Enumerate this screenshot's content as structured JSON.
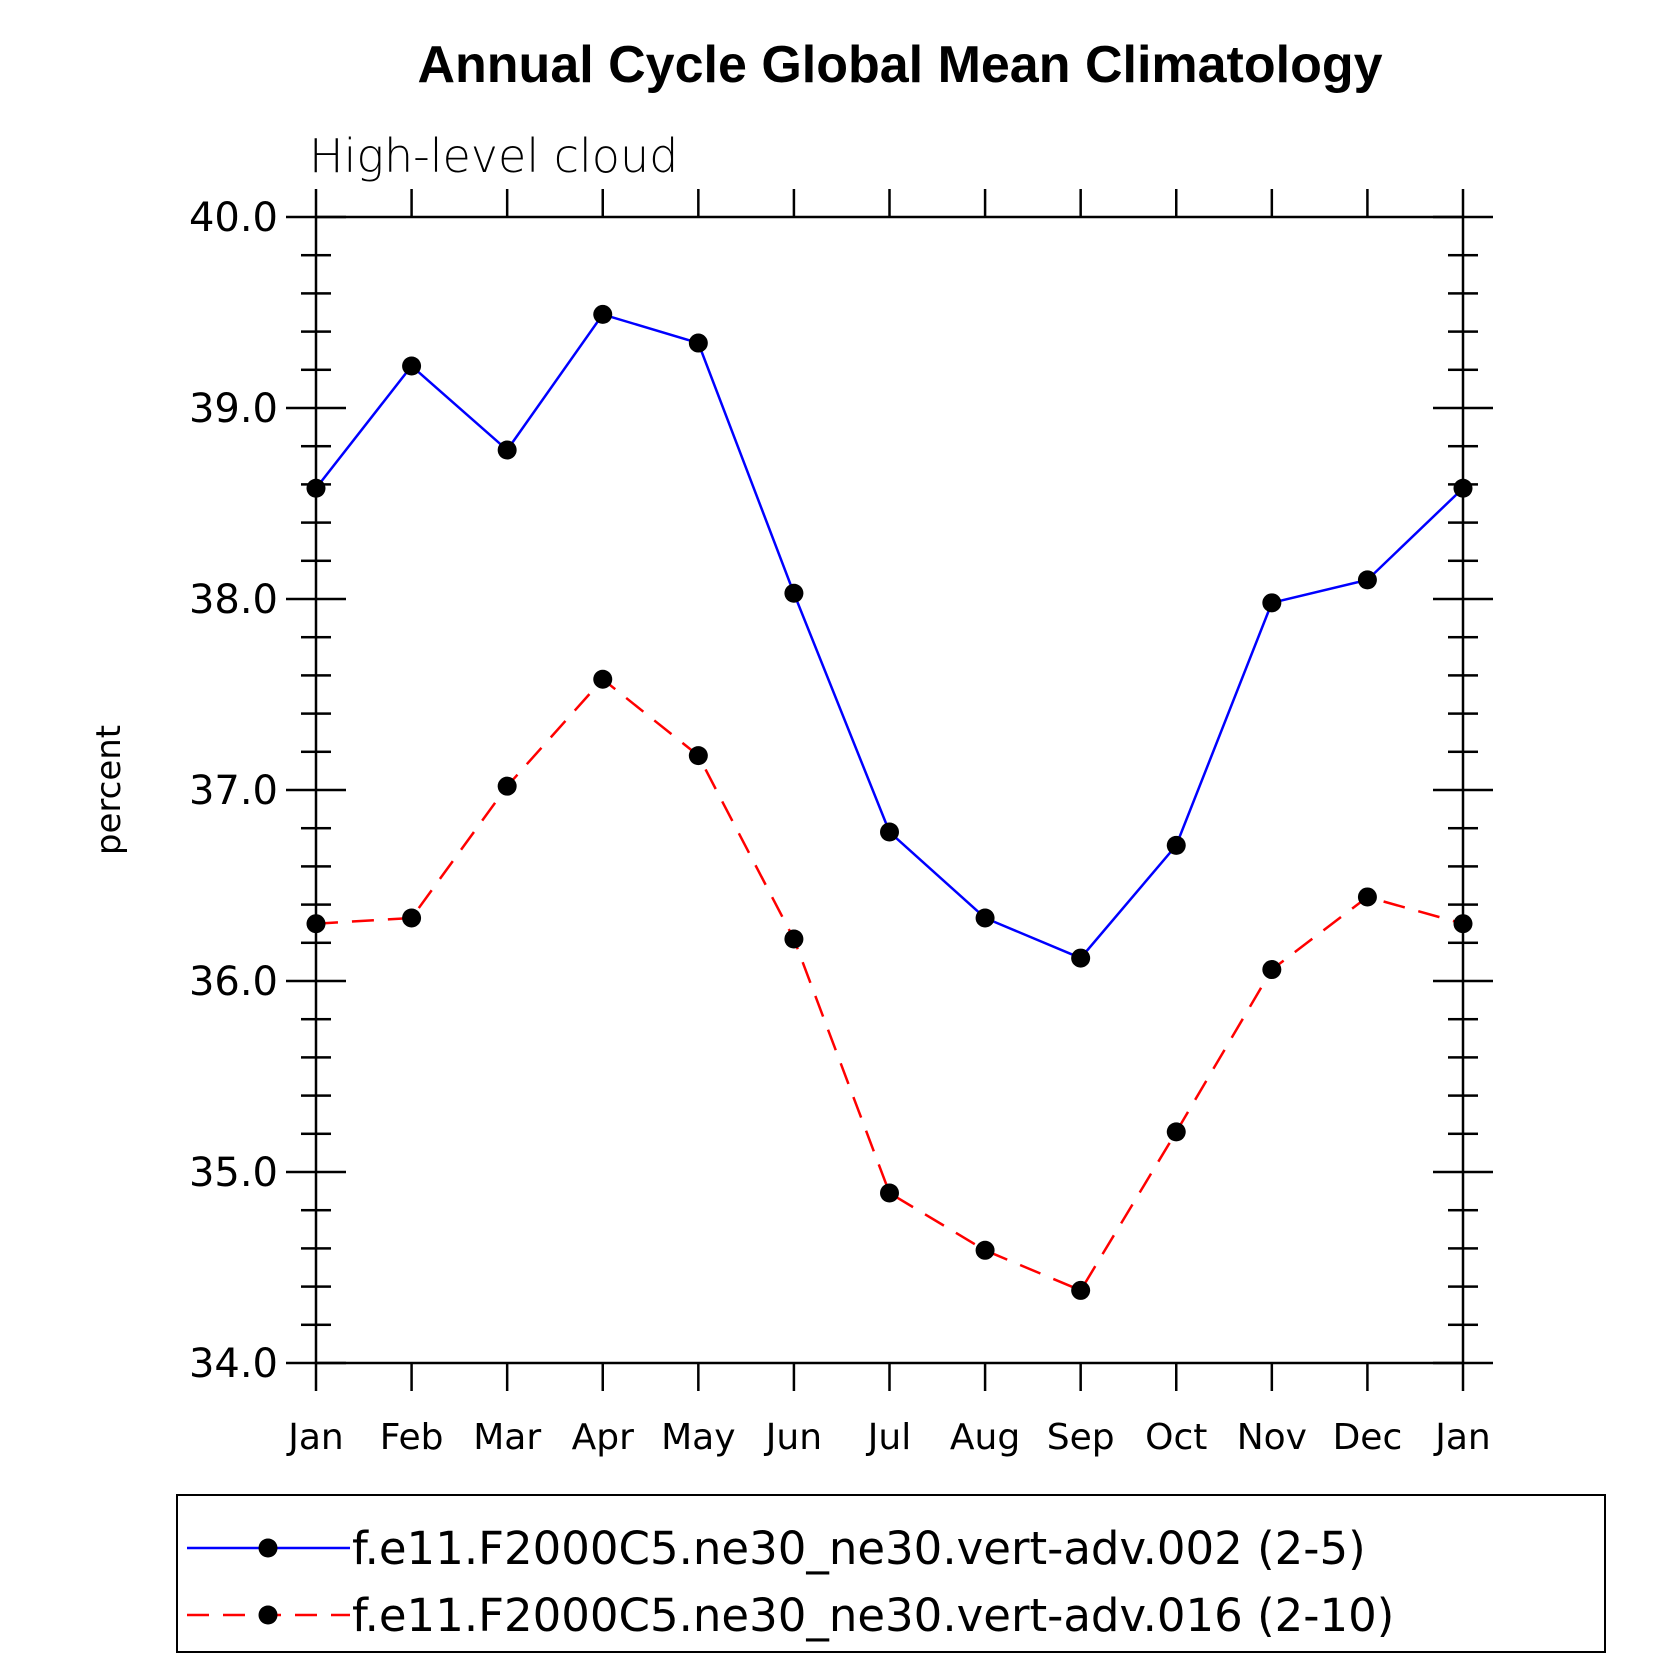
{
  "chart_data": {
    "type": "line",
    "title": "Annual Cycle Global Mean Climatology",
    "subtitle": "High-level cloud",
    "xlabel": "",
    "ylabel": "percent",
    "categories": [
      "Jan",
      "Feb",
      "Mar",
      "Apr",
      "May",
      "Jun",
      "Jul",
      "Aug",
      "Sep",
      "Oct",
      "Nov",
      "Dec",
      "Jan"
    ],
    "ylim": [
      34.0,
      40.0
    ],
    "yticks": [
      "34.0",
      "35.0",
      "36.0",
      "37.0",
      "38.0",
      "39.0",
      "40.0"
    ],
    "grid": false,
    "legend_position": "bottom",
    "series": [
      {
        "name": "f.e11.F2000C5.ne30_ne30.vert-adv.002 (2-5)",
        "color": "#0000ff",
        "line_style": "solid",
        "marker": "filled-circle",
        "values": [
          38.58,
          39.22,
          38.78,
          39.49,
          39.34,
          38.03,
          36.78,
          36.33,
          36.12,
          36.71,
          37.98,
          38.1,
          38.58
        ]
      },
      {
        "name": "f.e11.F2000C5.ne30_ne30.vert-adv.016 (2-10)",
        "color": "#ff0000",
        "line_style": "dashed",
        "marker": "filled-circle",
        "values": [
          36.3,
          36.33,
          37.02,
          37.58,
          37.18,
          36.22,
          34.89,
          34.59,
          34.38,
          35.21,
          36.06,
          36.44,
          36.3
        ]
      }
    ]
  }
}
